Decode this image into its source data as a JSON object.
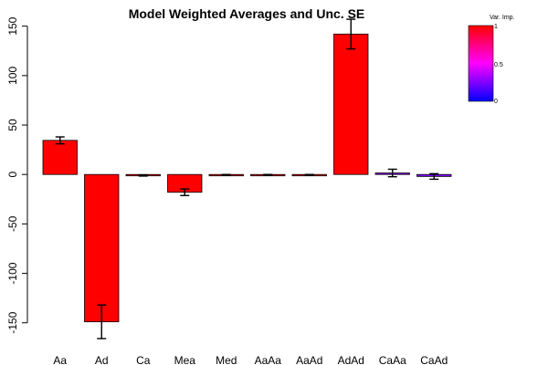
{
  "chart_data": {
    "type": "bar",
    "title": "Model Weighted Averages and Unc. SE",
    "xlabel": "",
    "ylabel": "",
    "ylim": [
      -165,
      158
    ],
    "yticks": [
      -150,
      -100,
      -50,
      0,
      50,
      100,
      150
    ],
    "categories": [
      "Aa",
      "Ad",
      "Ca",
      "Mea",
      "Med",
      "AaAa",
      "AaAd",
      "AdAd",
      "CaAa",
      "CaAd"
    ],
    "values": [
      34.5,
      -149,
      -1,
      -18,
      -0.5,
      -0.5,
      -0.5,
      142,
      1.5,
      -2
    ],
    "se": [
      3.5,
      17,
      0.6,
      3.3,
      0.5,
      0.5,
      0.5,
      15,
      3.8,
      2.8
    ],
    "importance": [
      1.0,
      1.0,
      1.0,
      1.0,
      1.0,
      1.0,
      1.0,
      1.0,
      0.25,
      0.25
    ],
    "legend": {
      "title": "Var. Imp.",
      "labels": [
        "1",
        "0.5",
        "0"
      ],
      "placement": "top-right",
      "colors": [
        "#ff0000",
        "#ff00ff",
        "#0000ff"
      ]
    },
    "grid": false
  }
}
